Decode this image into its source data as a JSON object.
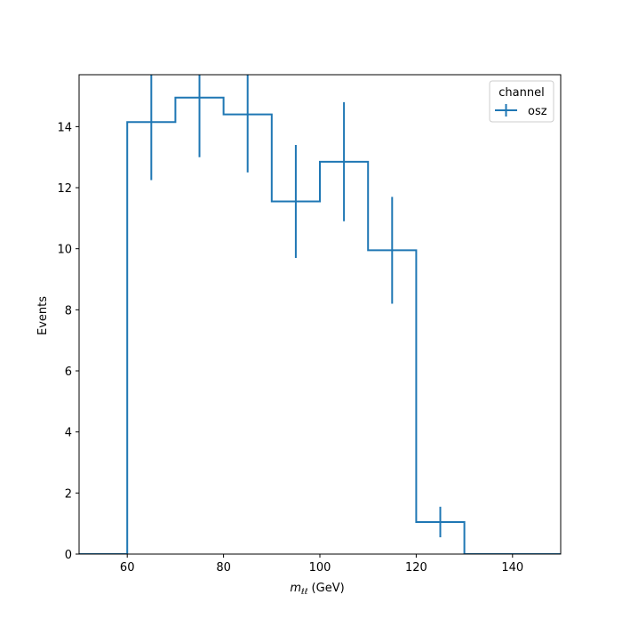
{
  "chart_data": {
    "type": "histogram",
    "xlabel_symbol": "m",
    "xlabel_subscript": "ℓℓ",
    "xlabel_unit": " (GeV)",
    "ylabel": "Events",
    "xlim": [
      50,
      150
    ],
    "ylim": [
      0,
      15.7
    ],
    "xticks": [
      60,
      80,
      100,
      120,
      140
    ],
    "yticks": [
      0,
      2,
      4,
      6,
      8,
      10,
      12,
      14
    ],
    "grid": false,
    "legend": {
      "title": "channel",
      "placement": "top-right",
      "entries": [
        "osz"
      ]
    },
    "bin_edges": [
      50,
      60,
      70,
      80,
      90,
      100,
      110,
      120,
      130,
      140,
      150
    ],
    "series": [
      {
        "name": "osz",
        "color": "#1f77b4",
        "values": [
          0,
          14.15,
          14.95,
          14.4,
          11.55,
          12.85,
          9.95,
          1.05,
          0,
          0
        ],
        "errors": [
          0,
          1.9,
          1.95,
          1.9,
          1.85,
          1.95,
          1.75,
          0.5,
          0,
          0
        ]
      }
    ]
  }
}
